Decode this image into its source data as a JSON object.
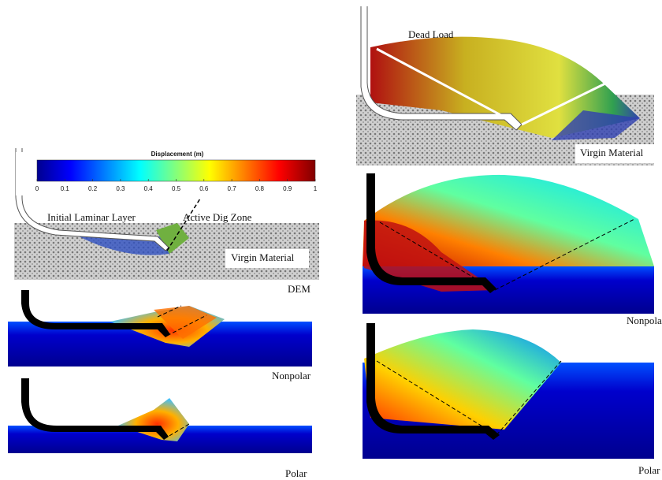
{
  "left": {
    "colorbar": {
      "title": "Displacement (m)",
      "lim": [
        0,
        1
      ],
      "ticks": [
        0,
        0.1,
        0.2,
        0.3,
        0.4,
        0.5,
        0.6,
        0.7,
        0.8,
        0.9,
        1
      ]
    },
    "dem": {
      "label_layer": "Initial Laminar Layer",
      "label_zone": "Active Dig Zone",
      "label_ground": "Virgin Material",
      "caption": "DEM"
    },
    "nonpolar": {
      "caption": "Nonpolar"
    },
    "polar": {
      "caption": "Polar"
    }
  },
  "right": {
    "dem": {
      "label_load": "Dead Load",
      "label_ground": "Virgin Material"
    },
    "nonpolar": {
      "caption": "Nonpolar"
    },
    "polar": {
      "caption": "Polar"
    }
  }
}
